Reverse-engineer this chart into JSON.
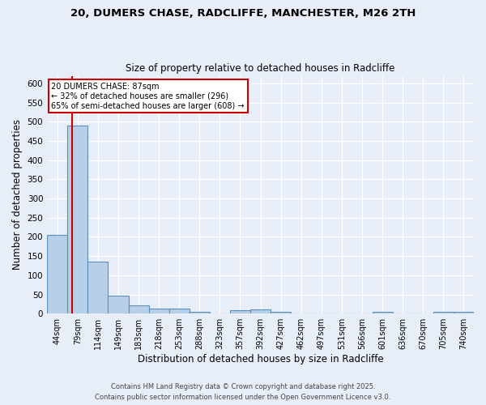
{
  "title_line1": "20, DUMERS CHASE, RADCLIFFE, MANCHESTER, M26 2TH",
  "title_line2": "Size of property relative to detached houses in Radcliffe",
  "xlabel": "Distribution of detached houses by size in Radcliffe",
  "ylabel": "Number of detached properties",
  "bin_labels": [
    "44sqm",
    "79sqm",
    "114sqm",
    "149sqm",
    "183sqm",
    "218sqm",
    "253sqm",
    "288sqm",
    "323sqm",
    "357sqm",
    "392sqm",
    "427sqm",
    "462sqm",
    "497sqm",
    "531sqm",
    "566sqm",
    "601sqm",
    "636sqm",
    "670sqm",
    "705sqm",
    "740sqm"
  ],
  "bar_heights": [
    205,
    490,
    135,
    46,
    21,
    14,
    13,
    5,
    1,
    9,
    10,
    4,
    1,
    1,
    1,
    1,
    4,
    1,
    1,
    4,
    4
  ],
  "bar_color": "#b8cfe8",
  "bar_edge_color": "#5a8fc0",
  "red_line_sqm": 87,
  "bin_edges_values": [
    44,
    79,
    114,
    149,
    183,
    218,
    253,
    288,
    323,
    357,
    392,
    427,
    462,
    497,
    531,
    566,
    601,
    636,
    670,
    705,
    740
  ],
  "annotation_line1": "20 DUMERS CHASE: 87sqm",
  "annotation_line2": "← 32% of detached houses are smaller (296)",
  "annotation_line3": "65% of semi-detached houses are larger (608) →",
  "annotation_box_color": "#ffffff",
  "annotation_box_edge": "#cc0000",
  "ylim": [
    0,
    620
  ],
  "yticks": [
    0,
    50,
    100,
    150,
    200,
    250,
    300,
    350,
    400,
    450,
    500,
    550,
    600
  ],
  "bg_color": "#e8eef8",
  "plot_bg_color": "#e8eef8",
  "grid_color": "#ffffff",
  "footnote_line1": "Contains HM Land Registry data © Crown copyright and database right 2025.",
  "footnote_line2": "Contains public sector information licensed under the Open Government Licence v3.0."
}
